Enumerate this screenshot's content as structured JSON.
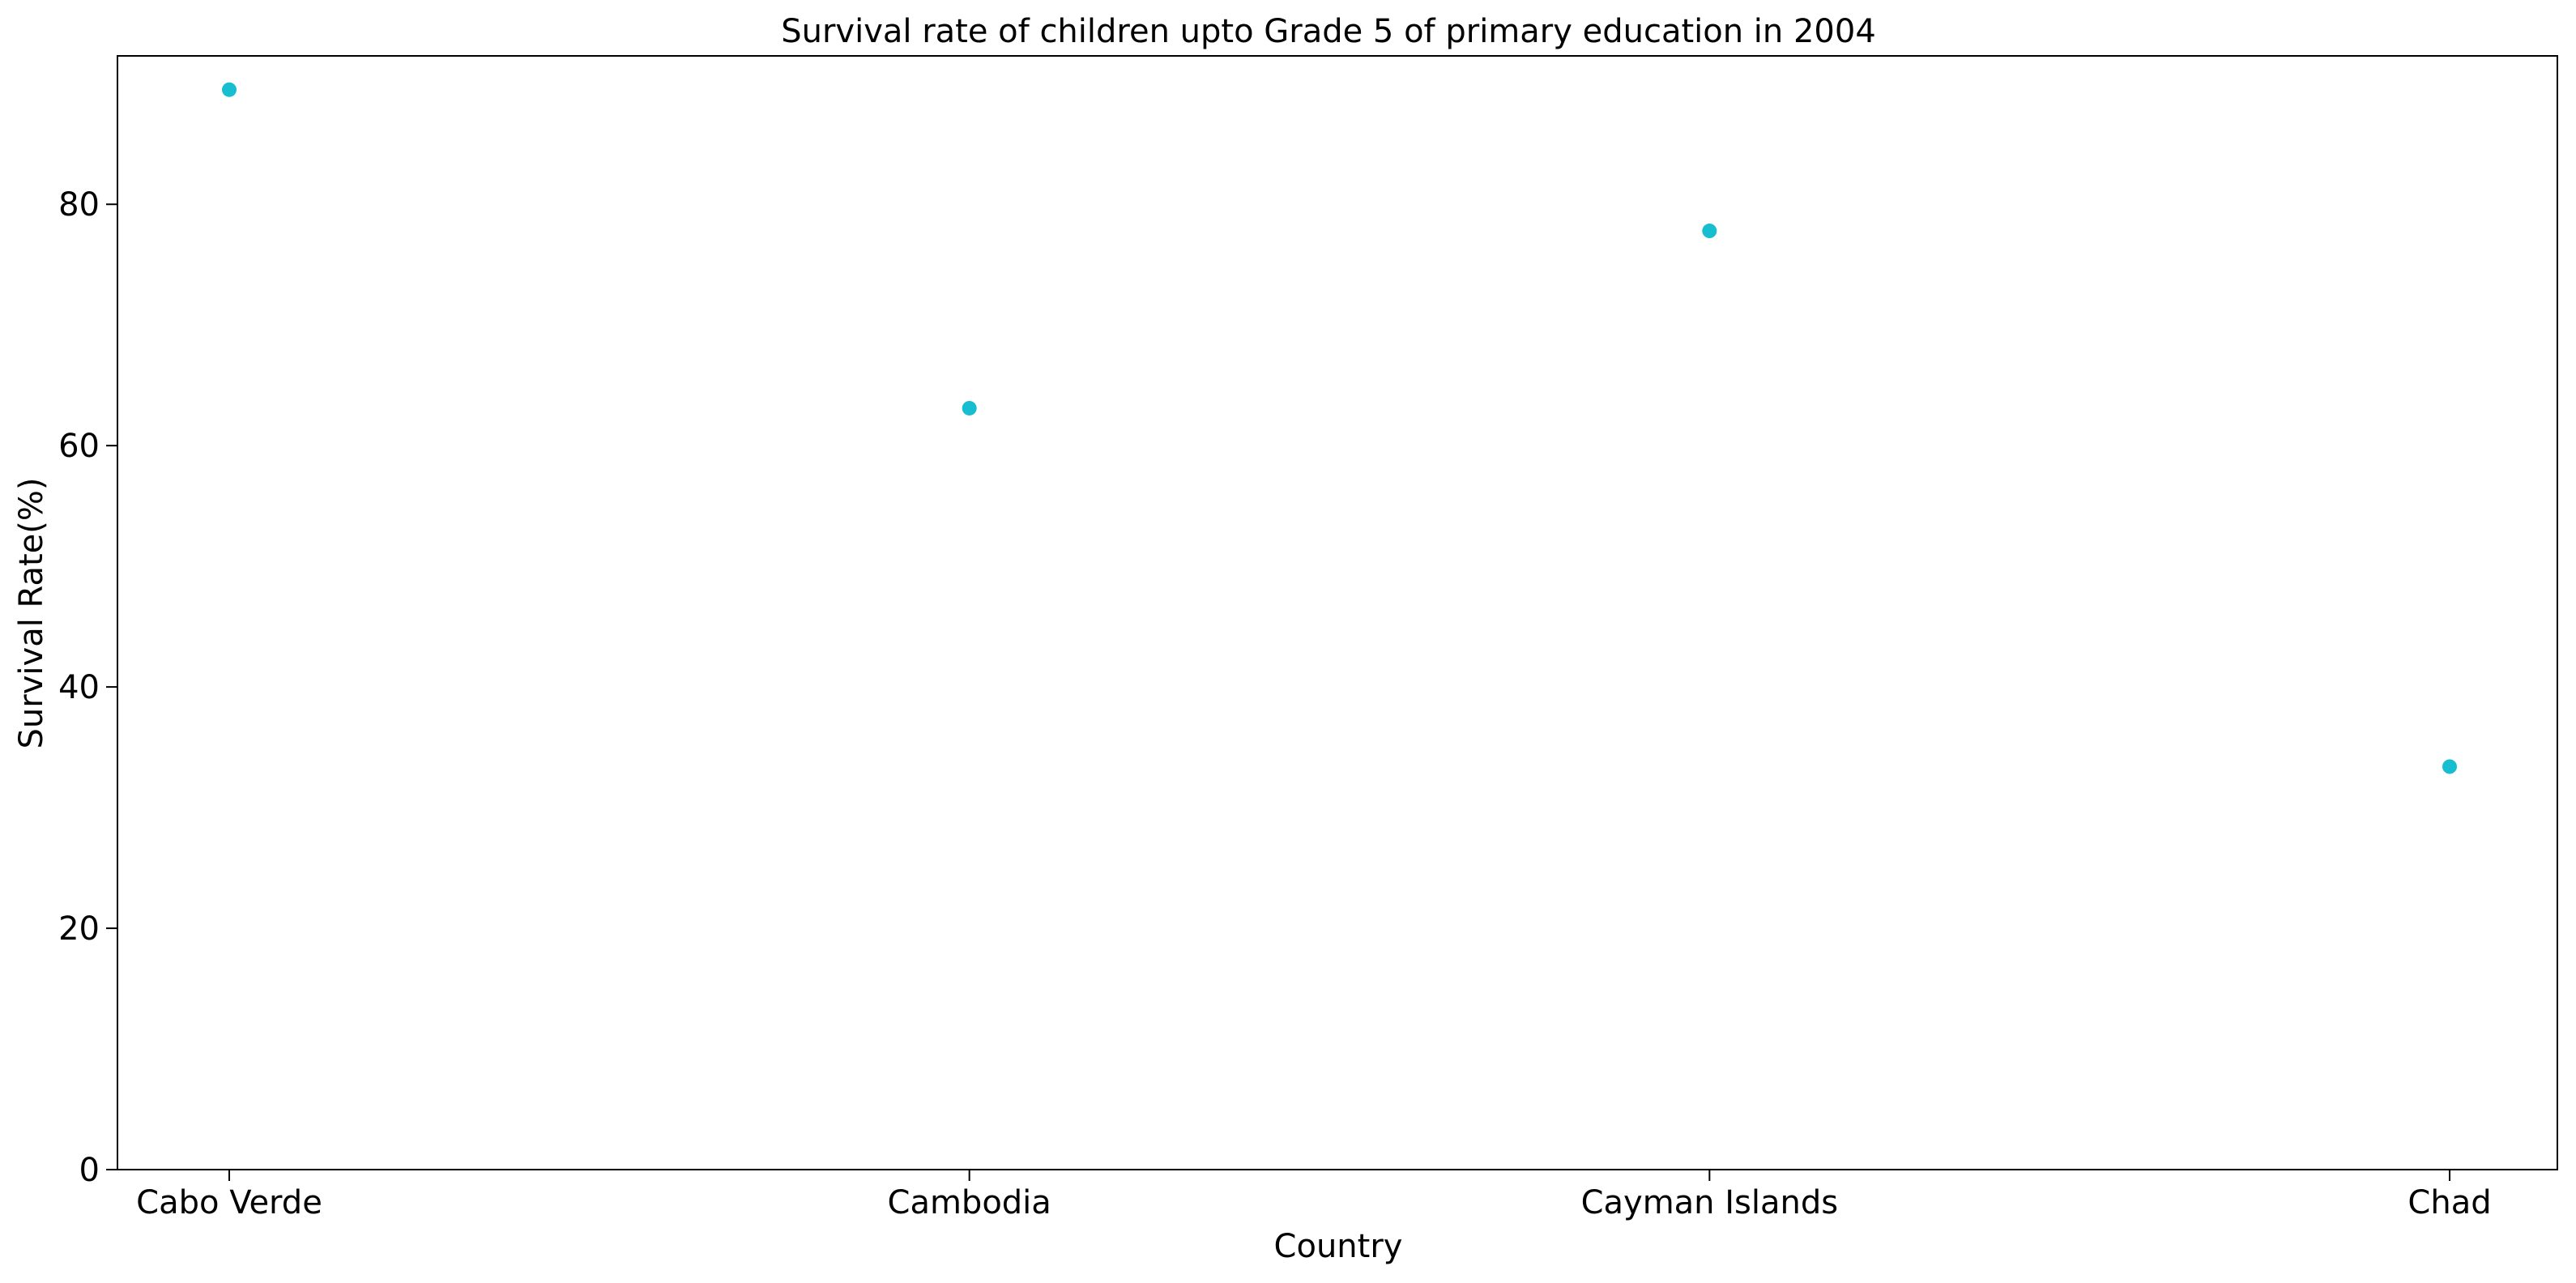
{
  "chart_data": {
    "type": "scatter",
    "title": "Survival rate of children upto Grade 5 of primary education in 2004",
    "xlabel": "Country",
    "ylabel": "Survival Rate(%)",
    "categories": [
      "Cabo Verde",
      "Cambodia",
      "Cayman Islands",
      "Chad"
    ],
    "values": [
      89.5,
      63.1,
      77.8,
      33.4
    ],
    "ylim": [
      0,
      92.3
    ],
    "yticks": [
      0,
      20,
      40,
      60,
      80
    ],
    "grid": false,
    "marker_color": "#17becf"
  }
}
